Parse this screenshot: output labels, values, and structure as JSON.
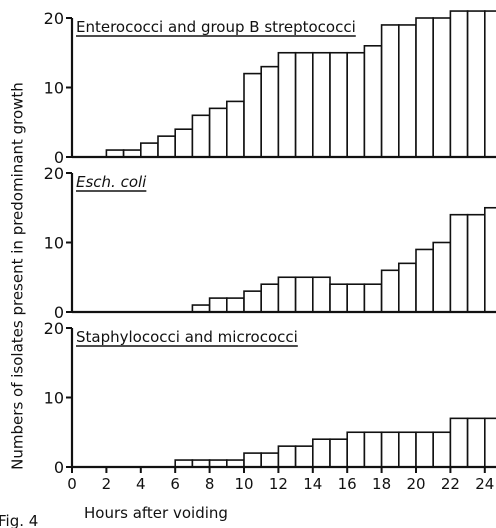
{
  "chart_data": [
    {
      "type": "bar",
      "title": "Enterococci and group B streptococci",
      "x": [
        0,
        1,
        2,
        3,
        4,
        5,
        6,
        7,
        8,
        9,
        10,
        11,
        12,
        13,
        14,
        15,
        16,
        17,
        18,
        19,
        20,
        21,
        22,
        23,
        24
      ],
      "values": [
        0,
        0,
        1,
        1,
        2,
        3,
        4,
        6,
        7,
        8,
        12,
        13,
        15,
        15,
        15,
        15,
        15,
        16,
        19,
        19,
        20,
        20,
        21,
        21,
        21
      ],
      "ylim": [
        0,
        20
      ],
      "yticks": [
        "0",
        "10",
        "20"
      ]
    },
    {
      "type": "bar",
      "title": "Esch. coli",
      "x": [
        0,
        1,
        2,
        3,
        4,
        5,
        6,
        7,
        8,
        9,
        10,
        11,
        12,
        13,
        14,
        15,
        16,
        17,
        18,
        19,
        20,
        21,
        22,
        23,
        24
      ],
      "values": [
        0,
        0,
        0,
        0,
        0,
        0,
        0,
        1,
        2,
        2,
        3,
        4,
        5,
        5,
        5,
        4,
        4,
        4,
        6,
        7,
        9,
        10,
        14,
        14,
        15
      ],
      "ylim": [
        0,
        20
      ],
      "yticks": [
        "0",
        "10",
        "20"
      ]
    },
    {
      "type": "bar",
      "title": "Staphylococci and micrococci",
      "x": [
        0,
        1,
        2,
        3,
        4,
        5,
        6,
        7,
        8,
        9,
        10,
        11,
        12,
        13,
        14,
        15,
        16,
        17,
        18,
        19,
        20,
        21,
        22,
        23,
        24
      ],
      "values": [
        0,
        0,
        0,
        0,
        0,
        0,
        1,
        1,
        1,
        1,
        2,
        2,
        3,
        3,
        4,
        4,
        5,
        5,
        5,
        5,
        5,
        5,
        7,
        7,
        7
      ],
      "ylim": [
        0,
        20
      ],
      "yticks": [
        "0",
        "10",
        "20"
      ]
    }
  ],
  "xaxis": {
    "tick_labels": [
      "0",
      "2",
      "4",
      "6",
      "8",
      "10",
      "12",
      "14",
      "16",
      "18",
      "20",
      "22",
      "24"
    ],
    "label": "Hours after voiding"
  },
  "ylabel": "Numbers of isolates present in predominant growth",
  "figure_label": "Fig. 4"
}
